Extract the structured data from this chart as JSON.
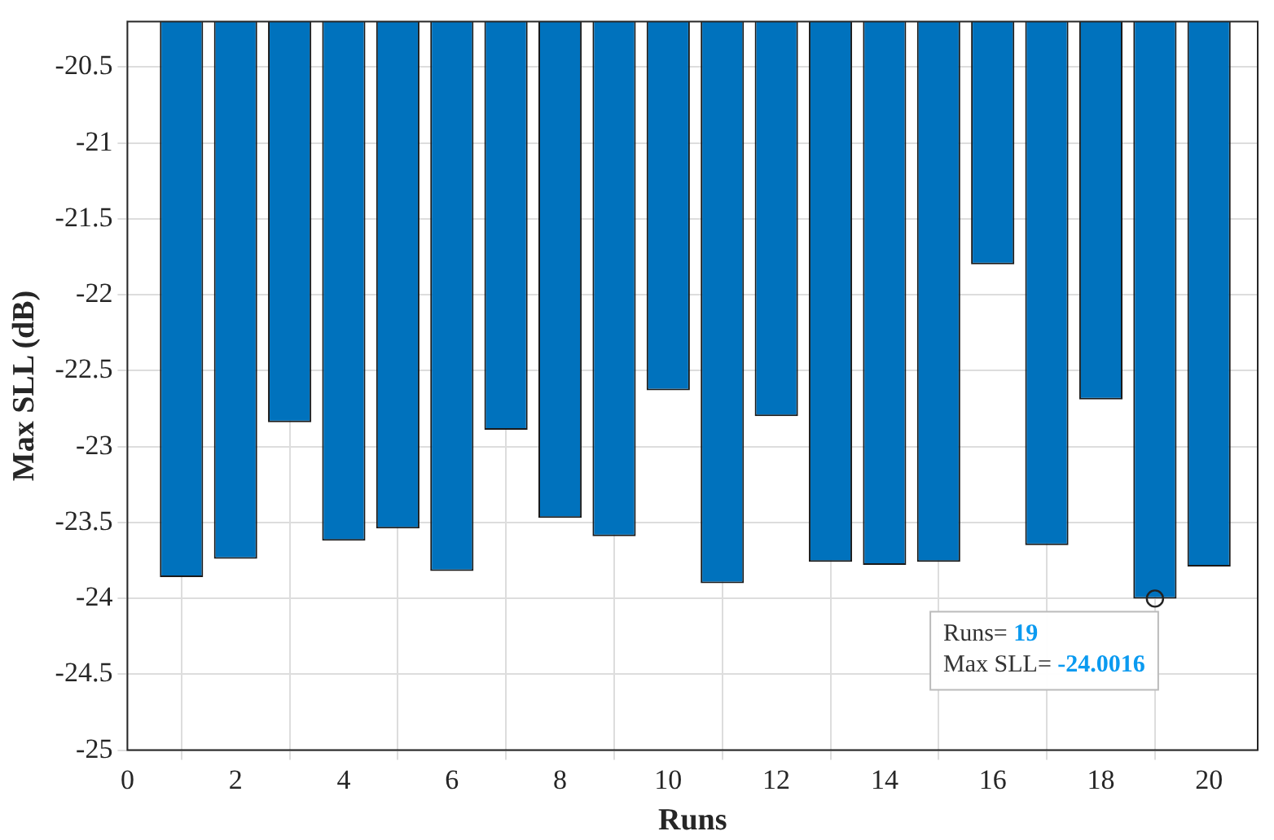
{
  "chart_data": {
    "type": "bar",
    "xlabel": "Runs",
    "ylabel": "Max SLL (dB)",
    "x": [
      1,
      2,
      3,
      4,
      5,
      6,
      7,
      8,
      9,
      10,
      11,
      12,
      13,
      14,
      15,
      16,
      17,
      18,
      19,
      20
    ],
    "values": [
      -23.86,
      -23.74,
      -22.84,
      -23.62,
      -23.54,
      -23.82,
      -22.89,
      -23.47,
      -23.59,
      -22.63,
      -23.9,
      -22.8,
      -23.76,
      -23.78,
      -23.76,
      -21.8,
      -23.65,
      -22.69,
      -24.0016,
      -23.79
    ],
    "color": "#0072bd",
    "xlim": [
      0,
      20.9
    ],
    "xticks": [
      0,
      2,
      4,
      6,
      8,
      10,
      12,
      14,
      16,
      18,
      20
    ],
    "ylim": [
      -25,
      -20.2
    ],
    "yticks": [
      -25,
      -24.5,
      -24,
      -23.5,
      -23,
      -22.5,
      -22,
      -21.5,
      -21,
      -20.5
    ],
    "grid": true,
    "annotations": [
      {
        "text": "Runs= 19\nMax SLL= -24.0016",
        "x": 19,
        "y": -24.0016
      }
    ]
  }
}
